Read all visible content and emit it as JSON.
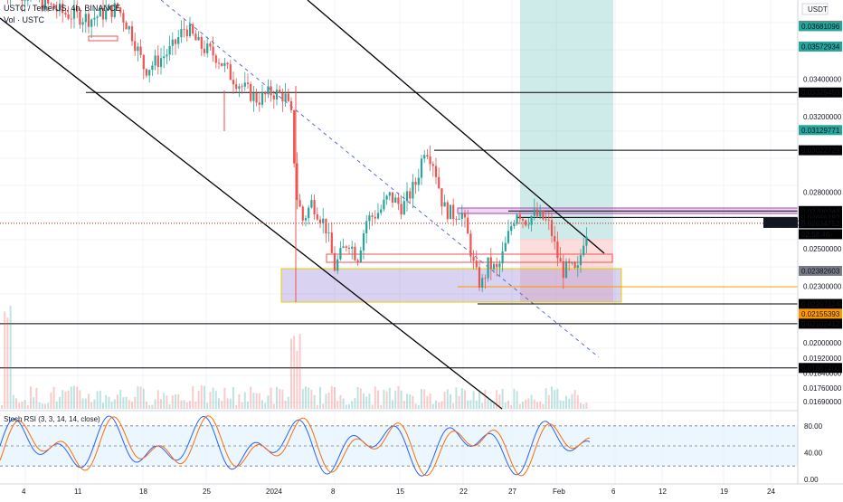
{
  "header": {
    "title": "USTC / TetherUS, 4h, BINANCE",
    "volume_label": "Vol · USTC"
  },
  "rsi_header": "Stoch RSI (3, 3, 14, 14, close)",
  "colors": {
    "bull": "#26a69a",
    "bear": "#ef5350",
    "grid": "#f0f3fa",
    "price_line": "#b71c1c",
    "channel": "#000000",
    "dashed_mid": "#5b6cdf",
    "rsi_k": "#2962ff",
    "rsi_d": "#ff6d00",
    "rsi_band": "#e3f2fd"
  },
  "chart_data": [
    {
      "type": "candlestick",
      "symbol": "USTCUSDT",
      "xaxis_labels": [
        "4",
        "11",
        "18",
        "25",
        "2024",
        "8",
        "15",
        "22",
        "27",
        "Feb",
        "6",
        "12",
        "19",
        "24"
      ],
      "ylim": [
        0.0166,
        0.0382
      ],
      "yaxis_ticks": [
        "0.03400000",
        "0.03200000",
        "0.02800000",
        "0.02500000",
        "0.02300000",
        "0.02000000",
        "0.01920000",
        "0.01840000",
        "0.01760000",
        "0.01690000"
      ],
      "currency": "USDT",
      "price_labels": [
        {
          "value": "0.03683654",
          "color": "#ef5350"
        },
        {
          "value": "0.03681096",
          "color": "#26a69a"
        },
        {
          "value": "0.03572934",
          "color": "#26a69a"
        },
        {
          "value": "0.03329459",
          "color": "#000000"
        },
        {
          "value": "0.03129771",
          "color": "#26a69a"
        },
        {
          "value": "0.03022729",
          "color": "#000000"
        },
        {
          "value": "0.02700243",
          "color": "#000000"
        },
        {
          "value": "0.02666182",
          "color": "#000000"
        },
        {
          "value": "0.02634752",
          "color": "#000000"
        },
        {
          "value": "02:58:46",
          "color": "#000000"
        },
        {
          "value": "0.02382603",
          "color": "#787b86"
        },
        {
          "value": "0.02207124",
          "color": "#000000"
        },
        {
          "value": "0.02155393",
          "color": "#ff9800"
        },
        {
          "value": "0.02102449",
          "color": "#ef5350"
        },
        {
          "value": "0.02102412",
          "color": "#000000"
        },
        {
          "value": "0.01867400",
          "color": "#000000"
        }
      ],
      "symbol_tag": "USTCUSDT",
      "horizontal_levels": [
        0.03329459,
        0.03022729,
        0.02700243,
        0.02666182,
        0.02207124,
        0.02102412,
        0.018674
      ],
      "last_price": 0.02634752,
      "close_path": [
        [
          0,
          0.0388
        ],
        [
          30,
          0.0385
        ],
        [
          70,
          0.0375
        ],
        [
          100,
          0.0372
        ],
        [
          130,
          0.0378
        ],
        [
          145,
          0.0365
        ],
        [
          160,
          0.0345
        ],
        [
          175,
          0.035
        ],
        [
          190,
          0.0356
        ],
        [
          205,
          0.0368
        ],
        [
          220,
          0.0358
        ],
        [
          240,
          0.0352
        ],
        [
          255,
          0.0342
        ],
        [
          270,
          0.0335
        ],
        [
          285,
          0.0329
        ],
        [
          300,
          0.0333
        ],
        [
          315,
          0.0331
        ],
        [
          322,
          0.032
        ],
        [
          328,
          0.0278
        ],
        [
          335,
          0.0265
        ],
        [
          345,
          0.0275
        ],
        [
          360,
          0.0262
        ],
        [
          370,
          0.024
        ],
        [
          385,
          0.0255
        ],
        [
          395,
          0.0245
        ],
        [
          405,
          0.0265
        ],
        [
          420,
          0.027
        ],
        [
          430,
          0.0278
        ],
        [
          445,
          0.0272
        ],
        [
          460,
          0.0285
        ],
        [
          470,
          0.0305
        ],
        [
          480,
          0.0295
        ],
        [
          490,
          0.0272
        ],
        [
          500,
          0.0268
        ],
        [
          510,
          0.027
        ],
        [
          518,
          0.0255
        ],
        [
          525,
          0.0238
        ],
        [
          532,
          0.023
        ],
        [
          540,
          0.0242
        ],
        [
          550,
          0.0238
        ],
        [
          558,
          0.025
        ],
        [
          565,
          0.0262
        ],
        [
          572,
          0.0271
        ],
        [
          580,
          0.0265
        ],
        [
          590,
          0.0268
        ],
        [
          600,
          0.0266
        ],
        [
          608,
          0.0262
        ],
        [
          615,
          0.0248
        ],
        [
          622,
          0.0238
        ],
        [
          630,
          0.024
        ],
        [
          638,
          0.0236
        ],
        [
          645,
          0.0255
        ],
        [
          650,
          0.0262
        ]
      ],
      "volume_note": "Vol · USTC"
    },
    {
      "type": "line",
      "title": "Stoch RSI (3, 3, 14, 14, close)",
      "ylim": [
        0,
        100
      ],
      "yaxis_ticks": [
        "80.00",
        "40.00",
        "0.00"
      ],
      "band": [
        20,
        80
      ]
    }
  ]
}
